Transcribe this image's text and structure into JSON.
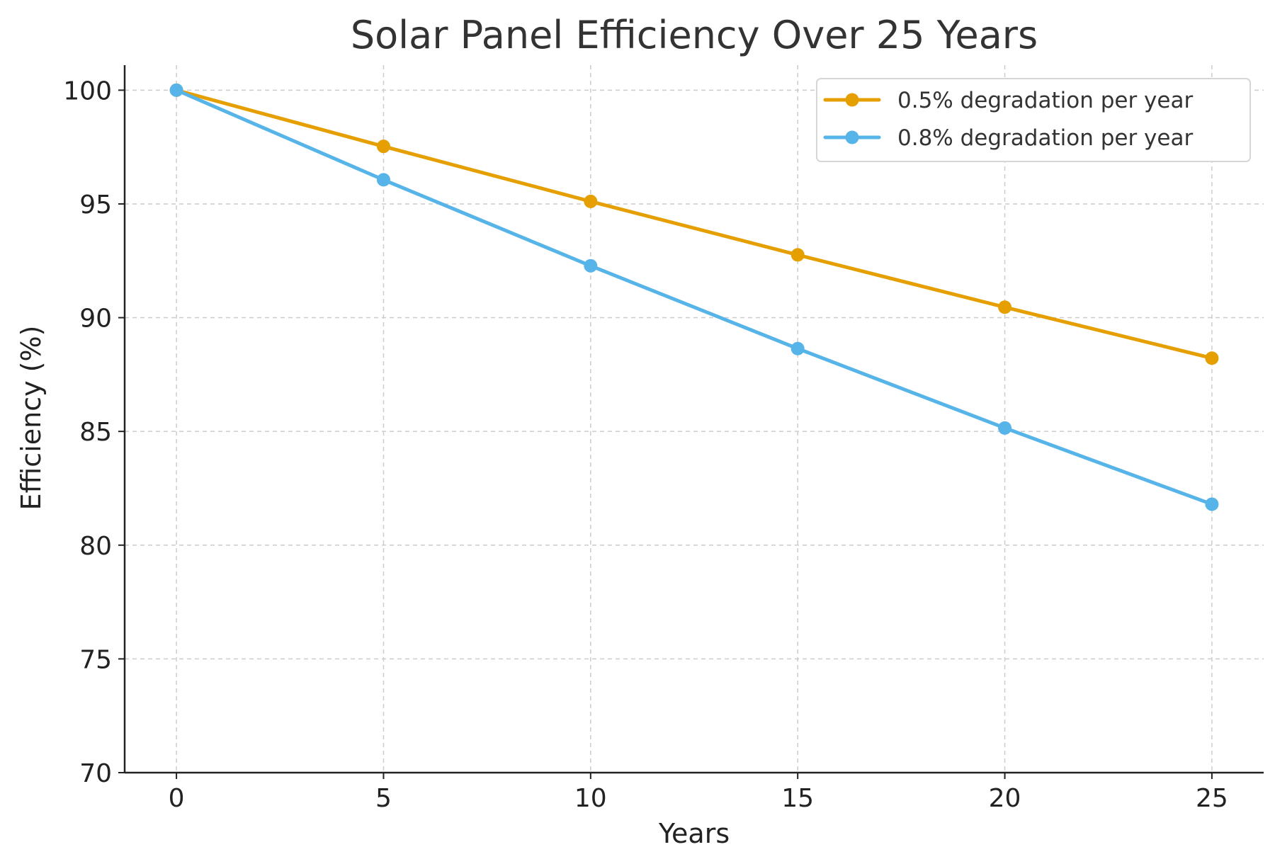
{
  "chart_data": {
    "type": "line",
    "title": "Solar Panel Efficiency Over 25 Years",
    "xlabel": "Years",
    "ylabel": "Efficiency (%)",
    "x": [
      0,
      5,
      10,
      15,
      20,
      25
    ],
    "xlim": [
      -1.25,
      26.25
    ],
    "ylim": [
      70,
      101.1
    ],
    "xticks": [
      0,
      5,
      10,
      15,
      20,
      25
    ],
    "xtick_labels": [
      "0",
      "5",
      "10",
      "15",
      "20",
      "25"
    ],
    "yticks": [
      70,
      75,
      80,
      85,
      90,
      95,
      100
    ],
    "ytick_labels": [
      "70",
      "75",
      "80",
      "85",
      "90",
      "95",
      "100"
    ],
    "grid": true,
    "legend_position": "top-right",
    "series": [
      {
        "name": "0.5% degradation per year",
        "color": "#E69F00",
        "marker": "circle",
        "values": [
          100.0,
          97.53,
          95.11,
          92.76,
          90.46,
          88.22
        ]
      },
      {
        "name": "0.8% degradation per year",
        "color": "#56B4E9",
        "marker": "circle",
        "values": [
          100.0,
          96.06,
          92.28,
          88.64,
          85.15,
          81.8
        ]
      }
    ]
  }
}
